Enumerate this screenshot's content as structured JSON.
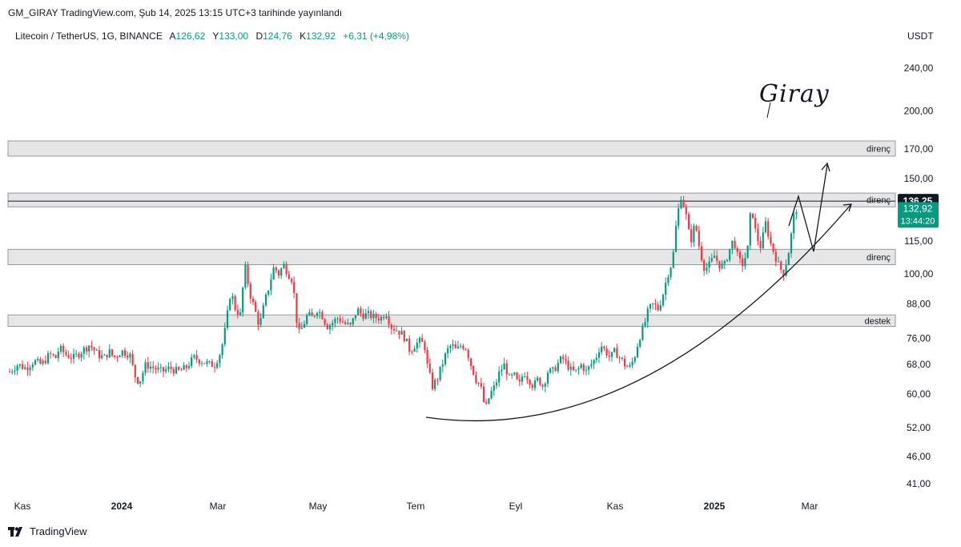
{
  "header": {
    "text": "GM_GIRAY TradingView.com, Şub 14, 2025 13:15 UTC+3 tarihinde yayınlandı"
  },
  "legend": {
    "symbol": "Litecoin / TetherUS, 1G, BINANCE",
    "open_label": "A",
    "open_value": "126,62",
    "high_label": "Y",
    "high_value": "133,00",
    "low_label": "D",
    "low_value": "124,76",
    "close_label": "K",
    "close_value": "132,92",
    "change": "+6,31 (+4,98%)"
  },
  "currency": "USDT",
  "signature": "Giray",
  "footer": {
    "brand": "TradingView"
  },
  "colors": {
    "up": "#089981",
    "down": "#f23645",
    "zone_fill": "#e6e6e6",
    "zone_border": "#9598a1",
    "price_tag": "#089981",
    "level_tag": "#131722"
  },
  "chart_data": {
    "type": "candlestick",
    "y_scale": "log",
    "y_ticks": [
      {
        "value": 240,
        "label": "240,00"
      },
      {
        "value": 200,
        "label": "200,00"
      },
      {
        "value": 170,
        "label": "170,00"
      },
      {
        "value": 150,
        "label": "150,00"
      },
      {
        "value": 115,
        "label": "115,00"
      },
      {
        "value": 100,
        "label": "100,00"
      },
      {
        "value": 88,
        "label": "88,00"
      },
      {
        "value": 76,
        "label": "76,00"
      },
      {
        "value": 68,
        "label": "68,00"
      },
      {
        "value": 60,
        "label": "60,00"
      },
      {
        "value": 52,
        "label": "52,00"
      },
      {
        "value": 46,
        "label": "46,00"
      },
      {
        "value": 41,
        "label": "41,00"
      }
    ],
    "x_ticks": [
      "Kas",
      "2024",
      "Mar",
      "May",
      "Tem",
      "Eyl",
      "Kas",
      "2025",
      "Mar"
    ],
    "zones": [
      {
        "label": "direnç",
        "low": 165,
        "high": 176
      },
      {
        "label": "direnç",
        "low": 133,
        "high": 141
      },
      {
        "label": "direnç",
        "low": 104,
        "high": 111
      },
      {
        "label": "destek",
        "low": 80,
        "high": 84
      }
    ],
    "level_line": {
      "value": 136.25,
      "label": "136,25"
    },
    "last_price": {
      "value": 132.92,
      "label": "132,92",
      "countdown": "13:44:20"
    },
    "price_path": [
      [
        0,
        66
      ],
      [
        10,
        68
      ],
      [
        20,
        67
      ],
      [
        30,
        69
      ],
      [
        40,
        68
      ],
      [
        50,
        71
      ],
      [
        58,
        70
      ],
      [
        62,
        73
      ],
      [
        70,
        71
      ],
      [
        80,
        70
      ],
      [
        90,
        72
      ],
      [
        100,
        74
      ],
      [
        110,
        71
      ],
      [
        118,
        70
      ],
      [
        124,
        72
      ],
      [
        130,
        70
      ],
      [
        140,
        72
      ],
      [
        150,
        71
      ],
      [
        156,
        65
      ],
      [
        162,
        63
      ],
      [
        170,
        68
      ],
      [
        180,
        67
      ],
      [
        190,
        66
      ],
      [
        200,
        67
      ],
      [
        210,
        66
      ],
      [
        220,
        67
      ],
      [
        230,
        70
      ],
      [
        240,
        69
      ],
      [
        250,
        68
      ],
      [
        256,
        68
      ],
      [
        264,
        72
      ],
      [
        270,
        80
      ],
      [
        276,
        93
      ],
      [
        282,
        86
      ],
      [
        288,
        84
      ],
      [
        294,
        103
      ],
      [
        300,
        92
      ],
      [
        306,
        86
      ],
      [
        312,
        80
      ],
      [
        318,
        88
      ],
      [
        324,
        95
      ],
      [
        330,
        103
      ],
      [
        336,
        100
      ],
      [
        342,
        104
      ],
      [
        348,
        100
      ],
      [
        352,
        98
      ],
      [
        356,
        90
      ],
      [
        360,
        77
      ],
      [
        366,
        80
      ],
      [
        372,
        84
      ],
      [
        378,
        83
      ],
      [
        384,
        86
      ],
      [
        390,
        84
      ],
      [
        396,
        80
      ],
      [
        402,
        81
      ],
      [
        410,
        83
      ],
      [
        418,
        81
      ],
      [
        426,
        80
      ],
      [
        434,
        86
      ],
      [
        440,
        84
      ],
      [
        448,
        84
      ],
      [
        456,
        83
      ],
      [
        464,
        83
      ],
      [
        470,
        85
      ],
      [
        476,
        80
      ],
      [
        482,
        79
      ],
      [
        488,
        78
      ],
      [
        494,
        76
      ],
      [
        500,
        72
      ],
      [
        506,
        74
      ],
      [
        512,
        75
      ],
      [
        518,
        74
      ],
      [
        522,
        67
      ],
      [
        528,
        62
      ],
      [
        534,
        64
      ],
      [
        540,
        68
      ],
      [
        546,
        72
      ],
      [
        552,
        74
      ],
      [
        558,
        72
      ],
      [
        564,
        74
      ],
      [
        570,
        73
      ],
      [
        576,
        68
      ],
      [
        582,
        64
      ],
      [
        588,
        62
      ],
      [
        594,
        56
      ],
      [
        600,
        60
      ],
      [
        606,
        62
      ],
      [
        612,
        66
      ],
      [
        618,
        68
      ],
      [
        624,
        64
      ],
      [
        630,
        65
      ],
      [
        636,
        62
      ],
      [
        642,
        66
      ],
      [
        648,
        64
      ],
      [
        654,
        62
      ],
      [
        660,
        64
      ],
      [
        666,
        62
      ],
      [
        672,
        66
      ],
      [
        678,
        66
      ],
      [
        684,
        68
      ],
      [
        690,
        70
      ],
      [
        696,
        68
      ],
      [
        702,
        66
      ],
      [
        708,
        66
      ],
      [
        714,
        68
      ],
      [
        720,
        66
      ],
      [
        726,
        68
      ],
      [
        732,
        70
      ],
      [
        738,
        74
      ],
      [
        744,
        72
      ],
      [
        750,
        70
      ],
      [
        756,
        72
      ],
      [
        762,
        70
      ],
      [
        768,
        68
      ],
      [
        774,
        67
      ],
      [
        780,
        70
      ],
      [
        786,
        76
      ],
      [
        792,
        80
      ],
      [
        798,
        86
      ],
      [
        804,
        88
      ],
      [
        810,
        86
      ],
      [
        816,
        92
      ],
      [
        822,
        100
      ],
      [
        828,
        106
      ],
      [
        832,
        122
      ],
      [
        838,
        140
      ],
      [
        844,
        130
      ],
      [
        850,
        114
      ],
      [
        856,
        124
      ],
      [
        862,
        110
      ],
      [
        868,
        102
      ],
      [
        874,
        104
      ],
      [
        880,
        108
      ],
      [
        886,
        104
      ],
      [
        892,
        103
      ],
      [
        898,
        110
      ],
      [
        904,
        116
      ],
      [
        910,
        106
      ],
      [
        916,
        104
      ],
      [
        922,
        112
      ],
      [
        926,
        134
      ],
      [
        932,
        118
      ],
      [
        938,
        112
      ],
      [
        944,
        124
      ],
      [
        950,
        114
      ],
      [
        956,
        108
      ],
      [
        960,
        104
      ],
      [
        966,
        100
      ],
      [
        972,
        108
      ],
      [
        976,
        118
      ],
      [
        980,
        130
      ],
      [
        984,
        133
      ]
    ]
  }
}
